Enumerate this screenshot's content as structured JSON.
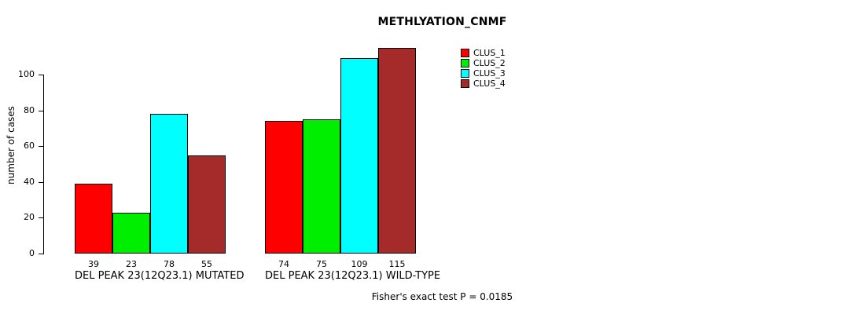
{
  "chart_data": {
    "type": "bar",
    "title": "METHLYATION_CNMF",
    "ylabel": "number of cases",
    "xlabel": "",
    "footnote": "Fisher's exact test P = 0.0185",
    "yticks": [
      0,
      20,
      40,
      60,
      80,
      100
    ],
    "ylim": [
      0,
      122
    ],
    "grid": false,
    "legend_position": "top-right",
    "categories": [
      "DEL PEAK 23(12Q23.1) MUTATED",
      "DEL PEAK 23(12Q23.1) WILD-TYPE"
    ],
    "series": [
      {
        "name": "CLUS_1",
        "color": "#FF0000",
        "values": [
          39,
          74
        ]
      },
      {
        "name": "CLUS_2",
        "color": "#00EE00",
        "values": [
          23,
          75
        ]
      },
      {
        "name": "CLUS_3",
        "color": "#00FFFF",
        "values": [
          78,
          109
        ]
      },
      {
        "name": "CLUS_4",
        "color": "#A52A2A",
        "values": [
          55,
          115
        ]
      }
    ],
    "bar_value_labels": [
      [
        39,
        23,
        78,
        55
      ],
      [
        74,
        75,
        109,
        115
      ]
    ]
  }
}
